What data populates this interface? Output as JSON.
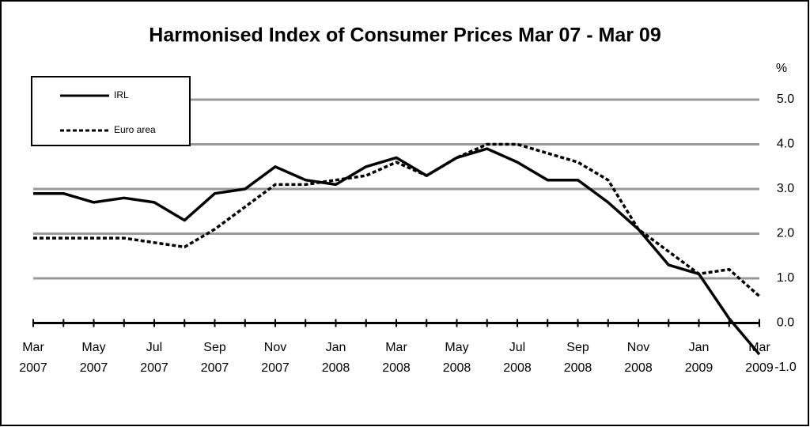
{
  "chart_data": {
    "type": "line",
    "title": "Harmonised Index of Consumer Prices Mar 07 - Mar 09",
    "y_label": "%",
    "categories": [
      "Mar 2007",
      null,
      "May 2007",
      null,
      "Jul 2007",
      null,
      "Sep 2007",
      null,
      "Nov 2007",
      null,
      "Jan 2008",
      null,
      "Mar 2008",
      null,
      "May 2008",
      null,
      "Jul 2008",
      null,
      "Sep 2008",
      null,
      "Nov 2008",
      null,
      "Jan 2009",
      null,
      "Mar 2009"
    ],
    "series": [
      {
        "name": "IRL",
        "color": "#000000",
        "dash": false,
        "values": [
          2.9,
          2.9,
          2.7,
          2.8,
          2.7,
          2.3,
          2.9,
          3.0,
          3.5,
          3.2,
          3.1,
          3.5,
          3.7,
          3.3,
          3.7,
          3.9,
          3.6,
          3.2,
          3.2,
          2.7,
          2.1,
          1.3,
          1.1,
          0.1,
          -0.7
        ]
      },
      {
        "name": "Euro area",
        "color": "#000000",
        "dash": true,
        "values": [
          1.9,
          1.9,
          1.9,
          1.9,
          1.8,
          1.7,
          2.1,
          2.6,
          3.1,
          3.1,
          3.2,
          3.3,
          3.6,
          3.3,
          3.7,
          4.0,
          4.0,
          3.8,
          3.6,
          3.2,
          2.1,
          1.6,
          1.1,
          1.2,
          0.6
        ]
      }
    ],
    "ylim": [
      -1,
      5
    ],
    "yticks": [
      {
        "value": -1,
        "label": "-1.0"
      },
      {
        "value": 0,
        "label": "0.0"
      },
      {
        "value": 1,
        "label": "1.0"
      },
      {
        "value": 2,
        "label": "2.0"
      },
      {
        "value": 3,
        "label": "3.0"
      },
      {
        "value": 4,
        "label": "4.0"
      },
      {
        "value": 5,
        "label": "5.0"
      }
    ],
    "grid": true,
    "legend": "top-left"
  }
}
